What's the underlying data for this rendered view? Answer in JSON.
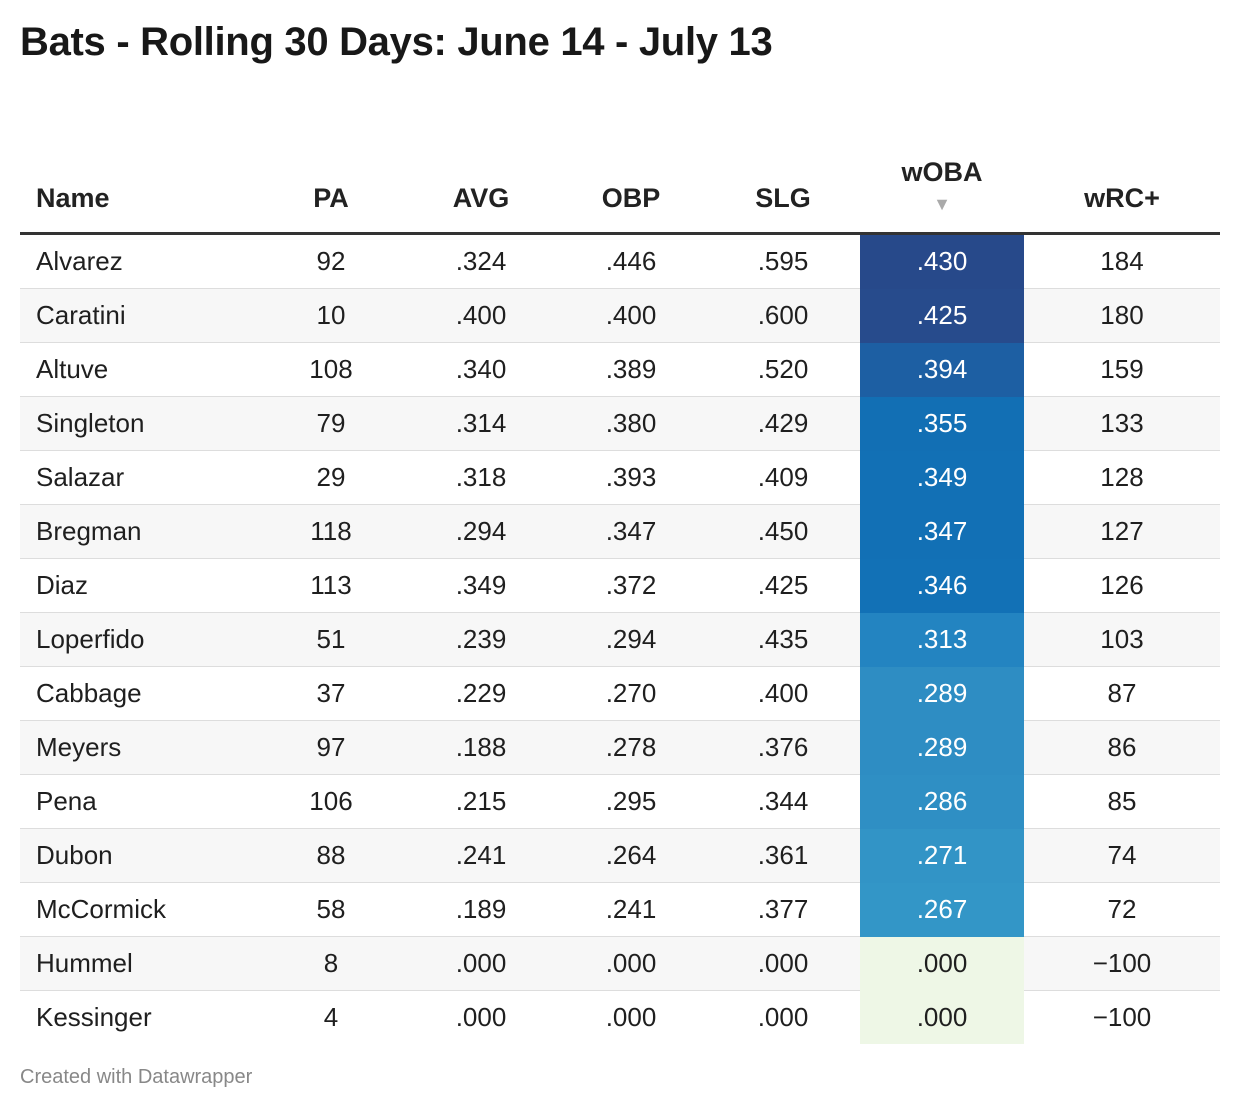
{
  "chart_data": {
    "type": "table",
    "title": "Bats - Rolling 30 Days: June 14 - July 13",
    "sorted_by": "wOBA",
    "sort_direction": "descending",
    "sort_indicator": "▼",
    "columns": [
      "Name",
      "PA",
      "AVG",
      "OBP",
      "SLG",
      "wOBA",
      "wRC+"
    ],
    "rows": [
      {
        "Name": "Alvarez",
        "PA": "92",
        "AVG": ".324",
        "OBP": ".446",
        "SLG": ".595",
        "wOBA": ".430",
        "wRC+": "184"
      },
      {
        "Name": "Caratini",
        "PA": "10",
        "AVG": ".400",
        "OBP": ".400",
        "SLG": ".600",
        "wOBA": ".425",
        "wRC+": "180"
      },
      {
        "Name": "Altuve",
        "PA": "108",
        "AVG": ".340",
        "OBP": ".389",
        "SLG": ".520",
        "wOBA": ".394",
        "wRC+": "159"
      },
      {
        "Name": "Singleton",
        "PA": "79",
        "AVG": ".314",
        "OBP": ".380",
        "SLG": ".429",
        "wOBA": ".355",
        "wRC+": "133"
      },
      {
        "Name": "Salazar",
        "PA": "29",
        "AVG": ".318",
        "OBP": ".393",
        "SLG": ".409",
        "wOBA": ".349",
        "wRC+": "128"
      },
      {
        "Name": "Bregman",
        "PA": "118",
        "AVG": ".294",
        "OBP": ".347",
        "SLG": ".450",
        "wOBA": ".347",
        "wRC+": "127"
      },
      {
        "Name": "Diaz",
        "PA": "113",
        "AVG": ".349",
        "OBP": ".372",
        "SLG": ".425",
        "wOBA": ".346",
        "wRC+": "126"
      },
      {
        "Name": "Loperfido",
        "PA": "51",
        "AVG": ".239",
        "OBP": ".294",
        "SLG": ".435",
        "wOBA": ".313",
        "wRC+": "103"
      },
      {
        "Name": "Cabbage",
        "PA": "37",
        "AVG": ".229",
        "OBP": ".270",
        "SLG": ".400",
        "wOBA": ".289",
        "wRC+": "87"
      },
      {
        "Name": "Meyers",
        "PA": "97",
        "AVG": ".188",
        "OBP": ".278",
        "SLG": ".376",
        "wOBA": ".289",
        "wRC+": "86"
      },
      {
        "Name": "Pena",
        "PA": "106",
        "AVG": ".215",
        "OBP": ".295",
        "SLG": ".344",
        "wOBA": ".286",
        "wRC+": "85"
      },
      {
        "Name": "Dubon",
        "PA": "88",
        "AVG": ".241",
        "OBP": ".264",
        "SLG": ".361",
        "wOBA": ".271",
        "wRC+": "74"
      },
      {
        "Name": "McCormick",
        "PA": "58",
        "AVG": ".189",
        "OBP": ".241",
        "SLG": ".377",
        "wOBA": ".267",
        "wRC+": "72"
      },
      {
        "Name": "Hummel",
        "PA": "8",
        "AVG": ".000",
        "OBP": ".000",
        "SLG": ".000",
        "wOBA": ".000",
        "wRC+": "−100"
      },
      {
        "Name": "Kessinger",
        "PA": "4",
        "AVG": ".000",
        "OBP": ".000",
        "SLG": ".000",
        "wOBA": ".000",
        "wRC+": "−100"
      }
    ],
    "woba_colors": [
      "#27498a",
      "#274b8c",
      "#1d5fa3",
      "#126fb4",
      "#1270b5",
      "#1270b5",
      "#1271b6",
      "#2384c1",
      "#2e8dc3",
      "#2e8dc3",
      "#2f8fc4",
      "#3294c6",
      "#3396c7",
      "#eef7e6",
      "#eef7e6"
    ]
  },
  "footer": "Created with Datawrapper"
}
